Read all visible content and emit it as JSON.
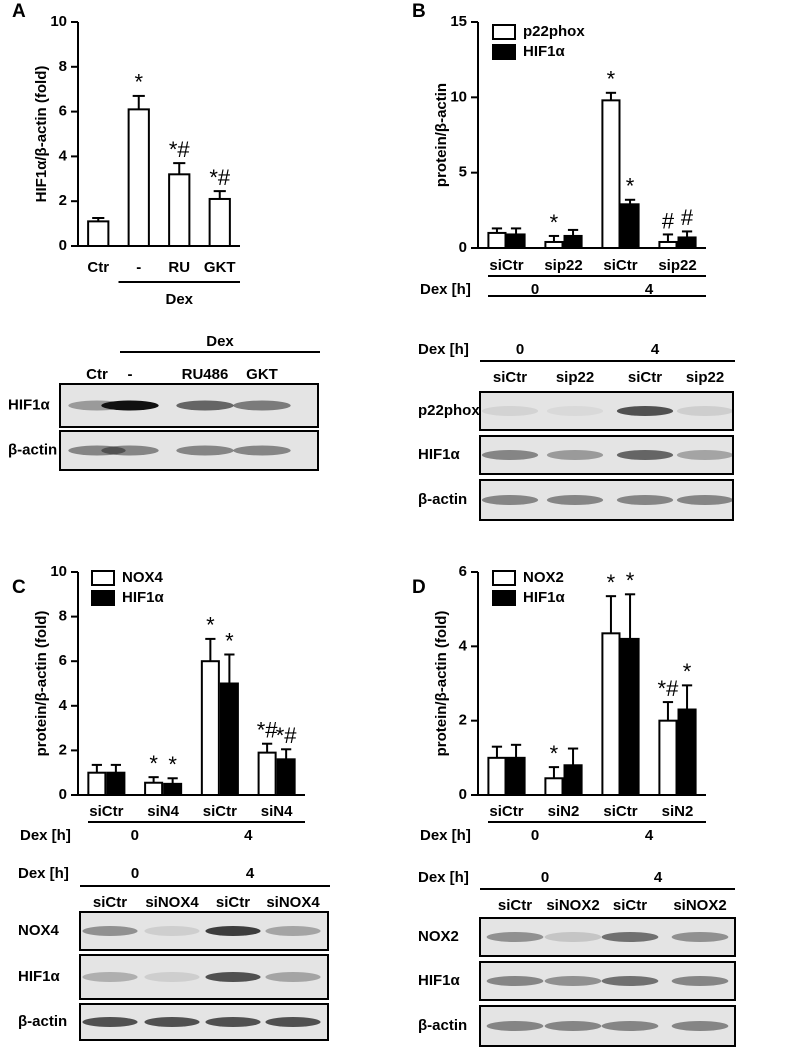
{
  "chart_data": [
    {
      "type": "bar",
      "panel": "A",
      "ylabel": "HIF1α/β-actin (fold)",
      "categories": [
        "Ctr",
        "-",
        "RU",
        "GKT"
      ],
      "group_label": "Dex",
      "series": [
        {
          "name": null,
          "color": "#ffffff",
          "values": [
            1.1,
            6.1,
            3.2,
            2.1
          ],
          "errors": [
            0.15,
            0.6,
            0.5,
            0.35
          ],
          "annotations": [
            null,
            "*",
            "*#",
            "*#"
          ]
        }
      ],
      "ylim": [
        0,
        10
      ],
      "yticks": [
        0,
        2,
        4,
        6,
        8,
        10
      ]
    },
    {
      "type": "bar",
      "panel": "B",
      "ylabel": "protein/β-actin",
      "categories": [
        "siCtr",
        "sip22",
        "siCtr",
        "sip22"
      ],
      "row_label": "Dex [h]",
      "groups": [
        "0",
        "4"
      ],
      "series": [
        {
          "name": "p22phox",
          "color": "#ffffff",
          "values": [
            1.0,
            0.4,
            9.8,
            0.4
          ],
          "errors": [
            0.3,
            0.4,
            0.5,
            0.5
          ],
          "annotations": [
            null,
            "*",
            "*",
            "#"
          ]
        },
        {
          "name": "HIF1α",
          "color": "#000000",
          "values": [
            0.9,
            0.8,
            2.9,
            0.7
          ],
          "errors": [
            0.4,
            0.4,
            0.3,
            0.4
          ],
          "annotations": [
            null,
            null,
            "*",
            "#"
          ]
        }
      ],
      "ylim": [
        0,
        15
      ],
      "yticks": [
        0,
        5,
        10,
        15
      ]
    },
    {
      "type": "bar",
      "panel": "C",
      "ylabel": "protein/β-actin (fold)",
      "categories": [
        "siCtr",
        "siN4",
        "siCtr",
        "siN4"
      ],
      "row_label": "Dex [h]",
      "groups": [
        "0",
        "4"
      ],
      "series": [
        {
          "name": "NOX4",
          "color": "#ffffff",
          "values": [
            1.0,
            0.55,
            6.0,
            1.9
          ],
          "errors": [
            0.35,
            0.25,
            1.0,
            0.4
          ],
          "annotations": [
            null,
            "*",
            "*",
            "*#"
          ]
        },
        {
          "name": "HIF1α",
          "color": "#000000",
          "values": [
            1.0,
            0.5,
            5.0,
            1.6
          ],
          "errors": [
            0.35,
            0.25,
            1.3,
            0.45
          ],
          "annotations": [
            null,
            "*",
            "*",
            "*#"
          ]
        }
      ],
      "ylim": [
        0,
        10
      ],
      "yticks": [
        0,
        2,
        4,
        6,
        8,
        10
      ]
    },
    {
      "type": "bar",
      "panel": "D",
      "ylabel": "protein/β-actin (fold)",
      "categories": [
        "siCtr",
        "siN2",
        "siCtr",
        "siN2"
      ],
      "row_label": "Dex [h]",
      "groups": [
        "0",
        "4"
      ],
      "series": [
        {
          "name": "NOX2",
          "color": "#ffffff",
          "values": [
            1.0,
            0.45,
            4.35,
            2.0
          ],
          "errors": [
            0.3,
            0.3,
            1.0,
            0.5
          ],
          "annotations": [
            null,
            "*",
            "*",
            "*#"
          ]
        },
        {
          "name": "HIF1α",
          "color": "#000000",
          "values": [
            1.0,
            0.8,
            4.2,
            2.3
          ],
          "errors": [
            0.35,
            0.45,
            1.2,
            0.65
          ],
          "annotations": [
            null,
            null,
            "*",
            "*"
          ]
        }
      ],
      "ylim": [
        0,
        6
      ],
      "yticks": [
        0,
        2,
        4,
        6
      ]
    }
  ],
  "blots": [
    {
      "header": "Dex",
      "lanes": [
        "Ctr",
        "-",
        "RU486",
        "GKT"
      ],
      "rows": [
        "HIF1α",
        "β-actin"
      ]
    },
    {
      "header": "Dex [h]",
      "groups": [
        "0",
        "4"
      ],
      "lanes": [
        "siCtr",
        "sip22",
        "siCtr",
        "sip22"
      ],
      "rows": [
        "p22phox",
        "HIF1α",
        "β-actin"
      ]
    },
    {
      "header": "Dex [h]",
      "groups": [
        "0",
        "4"
      ],
      "lanes": [
        "siCtr",
        "siNOX4",
        "siCtr",
        "siNOX4"
      ],
      "rows": [
        "NOX4",
        "HIF1α",
        "β-actin"
      ]
    },
    {
      "header": "Dex [h]",
      "groups": [
        "0",
        "4"
      ],
      "lanes": [
        "siCtr",
        "siNOX2",
        "siCtr",
        "siNOX2"
      ],
      "rows": [
        "NOX2",
        "HIF1α",
        "β-actin"
      ]
    }
  ]
}
